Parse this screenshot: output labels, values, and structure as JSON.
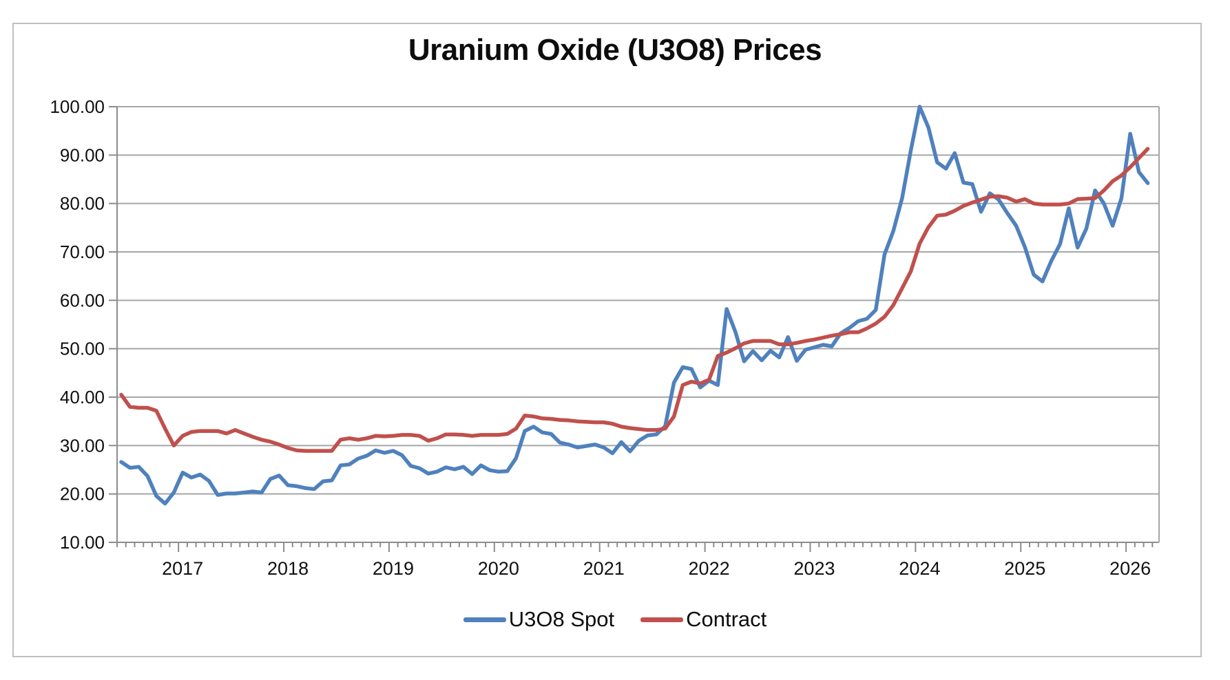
{
  "title": "Uranium Oxide (U3O8) Prices",
  "y_axis": {
    "labels": [
      "100.00",
      "90.00",
      "80.00",
      "70.00",
      "60.00",
      "50.00",
      "40.00",
      "30.00",
      "20.00",
      "10.00"
    ],
    "min": 10,
    "max": 100,
    "step": 10
  },
  "x_axis": {
    "year_labels": [
      "2017",
      "2018",
      "2019",
      "2020",
      "2021",
      "2022",
      "2023",
      "2024",
      "2025",
      "2026"
    ]
  },
  "legend": {
    "items": [
      {
        "label": "U3O8 Spot",
        "color": "#4F81BD"
      },
      {
        "label": "Contract",
        "color": "#C0504D"
      }
    ]
  },
  "chart_data": {
    "type": "line",
    "title": "Uranium Oxide (U3O8) Prices",
    "xlabel": "",
    "ylabel": "",
    "ylim": [
      10,
      100
    ],
    "ytick_step": 10,
    "grid": "horizontal",
    "grid_color": "#A6A6A6",
    "legend_position": "bottom",
    "x_monthly": [
      "2016-06",
      "2016-07",
      "2016-08",
      "2016-09",
      "2016-10",
      "2016-11",
      "2016-12",
      "2017-01",
      "2017-02",
      "2017-03",
      "2017-04",
      "2017-05",
      "2017-06",
      "2017-07",
      "2017-08",
      "2017-09",
      "2017-10",
      "2017-11",
      "2017-12",
      "2018-01",
      "2018-02",
      "2018-03",
      "2018-04",
      "2018-05",
      "2018-06",
      "2018-07",
      "2018-08",
      "2018-09",
      "2018-10",
      "2018-11",
      "2018-12",
      "2019-01",
      "2019-02",
      "2019-03",
      "2019-04",
      "2019-05",
      "2019-06",
      "2019-07",
      "2019-08",
      "2019-09",
      "2019-10",
      "2019-11",
      "2019-12",
      "2020-01",
      "2020-02",
      "2020-03",
      "2020-04",
      "2020-05",
      "2020-06",
      "2020-07",
      "2020-08",
      "2020-09",
      "2020-10",
      "2020-11",
      "2020-12",
      "2021-01",
      "2021-02",
      "2021-03",
      "2021-04",
      "2021-05",
      "2021-06",
      "2021-07",
      "2021-08",
      "2021-09",
      "2021-10",
      "2021-11",
      "2021-12",
      "2022-01",
      "2022-02",
      "2022-03",
      "2022-04",
      "2022-05",
      "2022-06",
      "2022-07",
      "2022-08",
      "2022-09",
      "2022-10",
      "2022-11",
      "2022-12",
      "2023-01",
      "2023-02",
      "2023-03",
      "2023-04",
      "2023-05",
      "2023-06",
      "2023-07",
      "2023-08",
      "2023-09",
      "2023-10",
      "2023-11",
      "2023-12",
      "2024-01",
      "2024-02",
      "2024-03",
      "2024-04",
      "2024-05",
      "2024-06",
      "2024-07",
      "2024-08",
      "2024-09",
      "2024-10",
      "2024-11",
      "2024-12",
      "2025-01",
      "2025-02",
      "2025-03",
      "2025-04",
      "2025-05",
      "2025-06",
      "2025-07",
      "2025-08",
      "2025-09",
      "2025-10",
      "2025-11",
      "2025-12",
      "2026-01",
      "2026-02",
      "2026-03"
    ],
    "series": [
      {
        "name": "U3O8 Spot",
        "color": "#4F81BD",
        "values": [
          26.6,
          25.4,
          25.6,
          23.7,
          19.6,
          18.0,
          20.3,
          24.4,
          23.4,
          24.0,
          22.7,
          19.8,
          20.1,
          20.1,
          20.3,
          20.5,
          20.3,
          23.1,
          23.8,
          21.8,
          21.6,
          21.2,
          21.0,
          22.6,
          22.8,
          25.9,
          26.1,
          27.3,
          27.9,
          29.0,
          28.5,
          28.9,
          28.0,
          25.8,
          25.3,
          24.2,
          24.6,
          25.5,
          25.1,
          25.6,
          24.1,
          25.9,
          24.9,
          24.6,
          24.7,
          27.4,
          33.0,
          33.9,
          32.7,
          32.4,
          30.6,
          30.2,
          29.6,
          29.9,
          30.2,
          29.6,
          28.4,
          30.7,
          28.8,
          31.0,
          32.1,
          32.3,
          34.0,
          43.0,
          46.2,
          45.8,
          42.0,
          43.4,
          42.5,
          58.2,
          53.5,
          47.4,
          49.5,
          47.6,
          49.6,
          48.2,
          52.4,
          47.5,
          49.8,
          50.3,
          50.8,
          50.5,
          53.2,
          54.3,
          55.7,
          56.2,
          58.0,
          69.5,
          74.3,
          81.1,
          91.0,
          100.0,
          95.7,
          88.5,
          87.2,
          90.4,
          84.3,
          84.0,
          78.3,
          82.1,
          80.8,
          78.0,
          75.4,
          71.0,
          65.3,
          63.9,
          68.1,
          71.6,
          79.0,
          70.9,
          74.8,
          82.7,
          80.0,
          75.4,
          81.1,
          94.4,
          86.5,
          84.2
        ]
      },
      {
        "name": "Contract",
        "color": "#C0504D",
        "values": [
          40.5,
          38.0,
          37.8,
          37.8,
          37.2,
          33.5,
          30.0,
          32.0,
          32.8,
          33.0,
          33.0,
          33.0,
          32.5,
          33.2,
          32.5,
          31.8,
          31.2,
          30.8,
          30.2,
          29.5,
          29.0,
          28.9,
          28.9,
          28.9,
          28.9,
          31.2,
          31.5,
          31.2,
          31.5,
          32.0,
          31.9,
          32.0,
          32.2,
          32.2,
          32.0,
          31.0,
          31.5,
          32.3,
          32.3,
          32.2,
          32.0,
          32.2,
          32.2,
          32.2,
          32.4,
          33.5,
          36.2,
          36.0,
          35.6,
          35.5,
          35.3,
          35.2,
          35.0,
          34.9,
          34.8,
          34.8,
          34.5,
          33.9,
          33.6,
          33.4,
          33.2,
          33.2,
          33.5,
          36.0,
          42.5,
          43.2,
          42.8,
          43.6,
          48.5,
          49.2,
          50.1,
          51.1,
          51.6,
          51.6,
          51.6,
          50.9,
          50.9,
          51.2,
          51.6,
          51.9,
          52.3,
          52.7,
          53.0,
          53.4,
          53.4,
          54.2,
          55.2,
          56.6,
          59.0,
          62.5,
          66.0,
          71.7,
          75.1,
          77.5,
          77.7,
          78.5,
          79.5,
          80.2,
          80.8,
          81.4,
          81.5,
          81.2,
          80.4,
          80.9,
          80.0,
          79.8,
          79.8,
          79.8,
          80.0,
          80.9,
          81.0,
          81.1,
          82.7,
          84.6,
          85.8,
          87.5,
          89.4,
          91.3
        ]
      }
    ]
  }
}
